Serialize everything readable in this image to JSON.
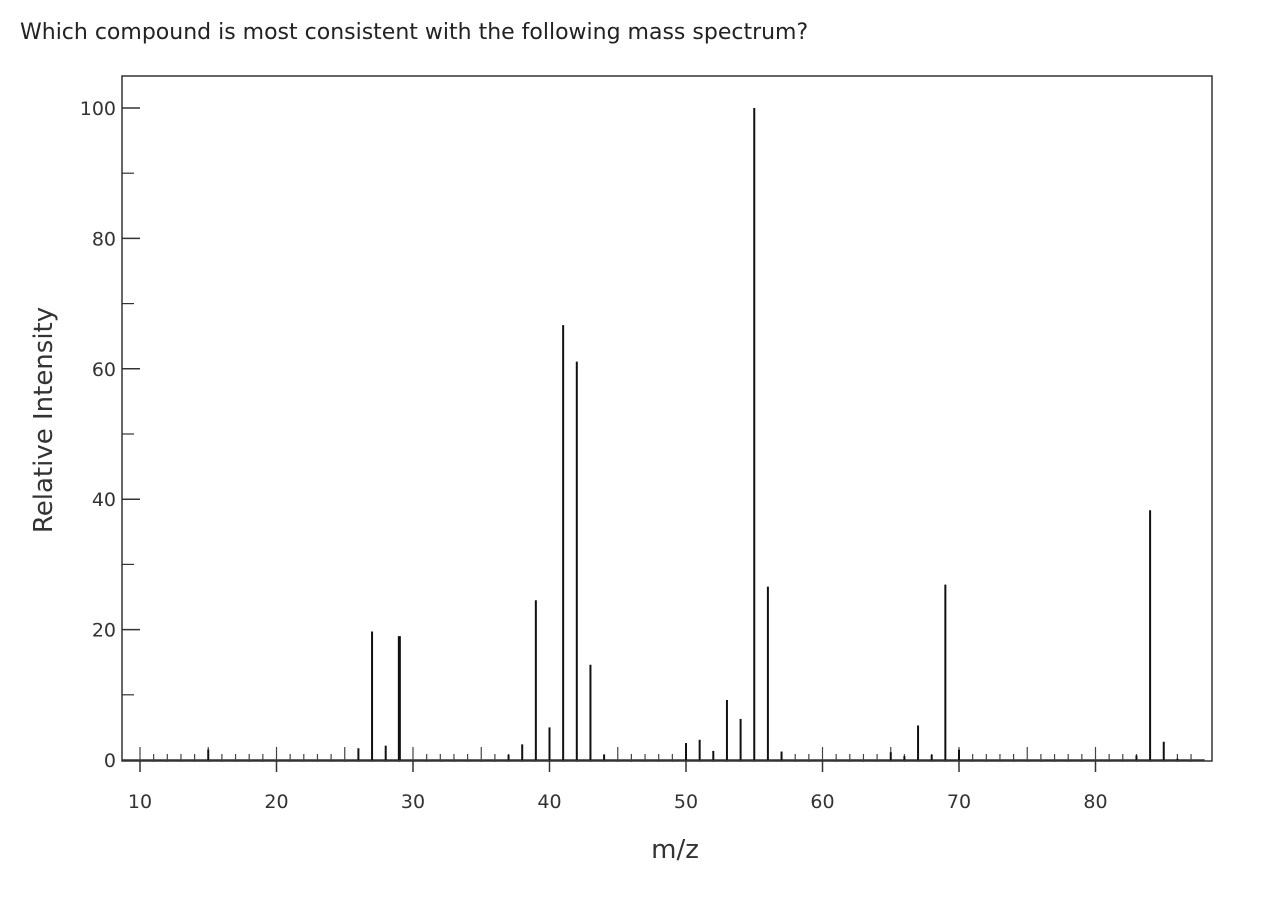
{
  "question": {
    "text": "Which compound is most consistent with the following mass spectrum?"
  },
  "chart_data": {
    "type": "bar",
    "xlabel": "m/z",
    "ylabel": "Relative Intensity",
    "xlim": [
      10,
      88
    ],
    "ylim": [
      0,
      100
    ],
    "x_ticks": [
      10,
      20,
      30,
      40,
      50,
      60,
      70,
      80
    ],
    "y_ticks": [
      0,
      20,
      40,
      60,
      80,
      100
    ],
    "grid": false,
    "peaks": [
      {
        "mz": 15,
        "intensity": 1.6
      },
      {
        "mz": 26,
        "intensity": 1.8
      },
      {
        "mz": 27,
        "intensity": 19.7
      },
      {
        "mz": 28,
        "intensity": 2.2
      },
      {
        "mz": 29,
        "intensity": 19.0
      },
      {
        "mz": 37,
        "intensity": 0.8
      },
      {
        "mz": 38,
        "intensity": 2.4
      },
      {
        "mz": 39,
        "intensity": 24.5
      },
      {
        "mz": 40,
        "intensity": 5.0
      },
      {
        "mz": 41,
        "intensity": 66.7
      },
      {
        "mz": 42,
        "intensity": 61.1
      },
      {
        "mz": 43,
        "intensity": 14.6
      },
      {
        "mz": 44,
        "intensity": 0.8
      },
      {
        "mz": 50,
        "intensity": 2.6
      },
      {
        "mz": 51,
        "intensity": 3.1
      },
      {
        "mz": 52,
        "intensity": 1.4
      },
      {
        "mz": 53,
        "intensity": 9.2
      },
      {
        "mz": 54,
        "intensity": 6.3
      },
      {
        "mz": 55,
        "intensity": 100.0
      },
      {
        "mz": 56,
        "intensity": 26.6
      },
      {
        "mz": 57,
        "intensity": 1.3
      },
      {
        "mz": 65,
        "intensity": 1.2
      },
      {
        "mz": 66,
        "intensity": 0.6
      },
      {
        "mz": 67,
        "intensity": 5.3
      },
      {
        "mz": 68,
        "intensity": 0.8
      },
      {
        "mz": 69,
        "intensity": 26.9
      },
      {
        "mz": 70,
        "intensity": 1.6
      },
      {
        "mz": 83,
        "intensity": 0.7
      },
      {
        "mz": 84,
        "intensity": 38.3
      },
      {
        "mz": 85,
        "intensity": 2.8
      },
      {
        "mz": 86,
        "intensity": 0.2
      }
    ]
  }
}
